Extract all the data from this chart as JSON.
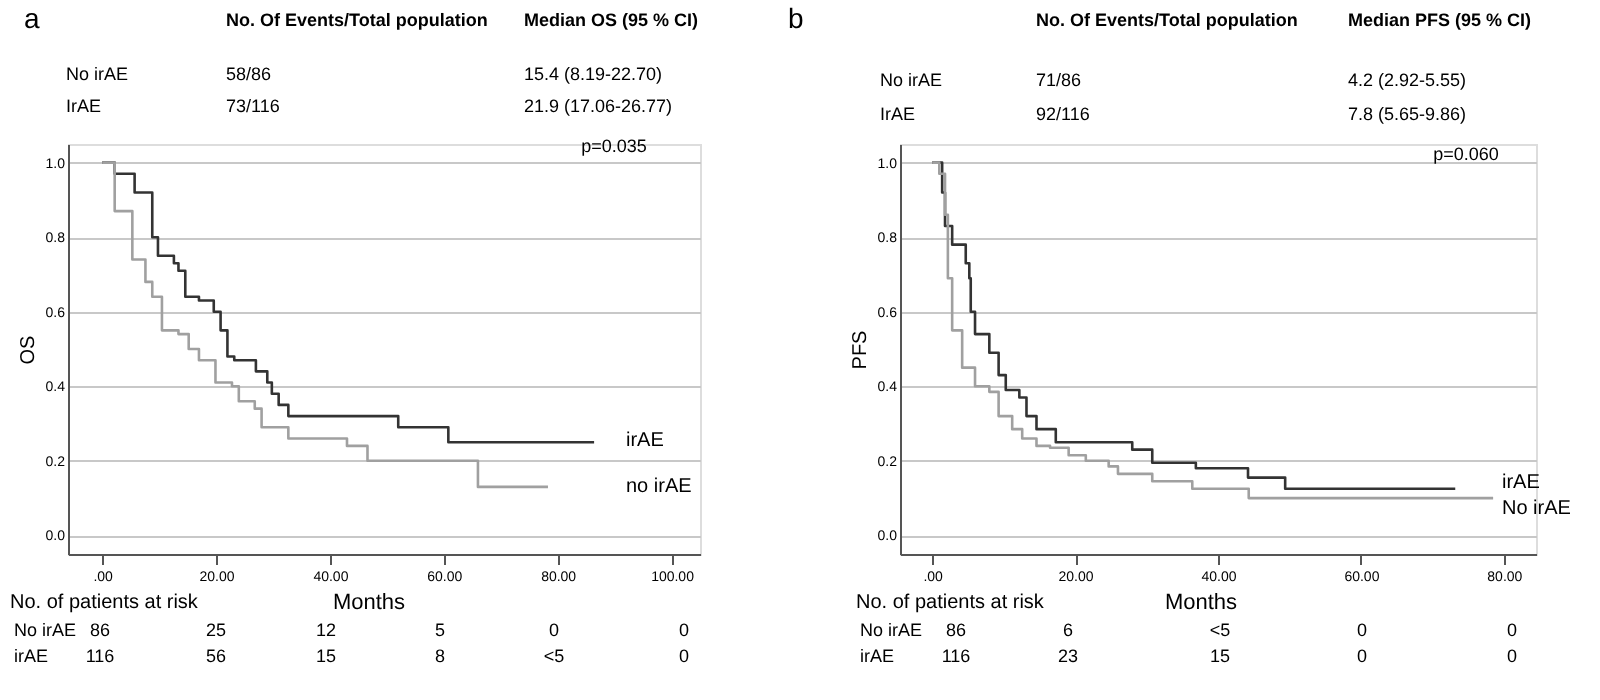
{
  "chart_data": [
    {
      "type": "step",
      "title": "a",
      "xlabel": "Months",
      "ylabel": "OS",
      "xlim": [
        -6,
        105
      ],
      "ylim": [
        -0.05,
        1.05
      ],
      "xticks": [
        {
          "value": 0,
          "label": ".00"
        },
        {
          "value": 20,
          "label": "20.00"
        },
        {
          "value": 40,
          "label": "40.00"
        },
        {
          "value": 60,
          "label": "60.00"
        },
        {
          "value": 80,
          "label": "80.00"
        },
        {
          "value": 100,
          "label": "100.00"
        }
      ],
      "yticks": [
        {
          "value": 0,
          "label": "0.0"
        },
        {
          "value": 0.2,
          "label": "0.2"
        },
        {
          "value": 0.4,
          "label": "0.4"
        },
        {
          "value": 0.6,
          "label": "0.6"
        },
        {
          "value": 0.8,
          "label": "0.8"
        },
        {
          "value": 1,
          "label": "1.0"
        }
      ],
      "grid": "y",
      "series": [
        {
          "name": "irAE",
          "color": "#333333",
          "x": [
            0,
            2.2,
            5.7,
            8.8,
            9.8,
            12.6,
            13.4,
            14.6,
            17,
            19.6,
            20.8,
            22,
            23.2,
            27,
            29,
            29.8,
            31,
            32.7,
            52,
            60.8,
            86.4
          ],
          "values": [
            1,
            0.97,
            0.92,
            0.8,
            0.75,
            0.73,
            0.71,
            0.64,
            0.63,
            0.6,
            0.55,
            0.48,
            0.47,
            0.44,
            0.41,
            0.38,
            0.35,
            0.32,
            0.29,
            0.25,
            0.25
          ]
        },
        {
          "name": "no irAE",
          "color": "#a0a0a0",
          "x": [
            0,
            2.2,
            5.3,
            7.6,
            8.8,
            10.5,
            13.4,
            15.2,
            17,
            19.9,
            22.8,
            24,
            26.8,
            28,
            32.7,
            43,
            46.6,
            66,
            78.3
          ],
          "values": [
            1,
            0.87,
            0.74,
            0.68,
            0.64,
            0.55,
            0.54,
            0.5,
            0.47,
            0.41,
            0.4,
            0.36,
            0.34,
            0.29,
            0.26,
            0.24,
            0.2,
            0.13,
            0.13
          ]
        }
      ],
      "annotations": [
        "No. Of Events/Total population",
        "Median OS (95 % CI)",
        "No irAE",
        "58/86",
        "15.4 (8.19-22.70)",
        "IrAE",
        "73/116",
        "21.9 (17.06-26.77)",
        "p=0.035",
        "No. of patients at risk",
        "No irAE",
        "86",
        "25",
        "12",
        "5",
        "0",
        "0",
        "irAE",
        "116",
        "56",
        "15",
        "8",
        "<5",
        "0"
      ]
    },
    {
      "type": "step",
      "title": "b",
      "xlabel": "Months",
      "ylabel": "PFS",
      "xlim": [
        -4.5,
        84.5
      ],
      "ylim": [
        -0.05,
        1.05
      ],
      "xticks": [
        {
          "value": 0,
          "label": ".00"
        },
        {
          "value": 20,
          "label": "20.00"
        },
        {
          "value": 40,
          "label": "40.00"
        },
        {
          "value": 60,
          "label": "60.00"
        },
        {
          "value": 80,
          "label": "80.00"
        }
      ],
      "yticks": [
        {
          "value": 0,
          "label": "0.0"
        },
        {
          "value": 0.2,
          "label": "0.2"
        },
        {
          "value": 0.4,
          "label": "0.4"
        },
        {
          "value": 0.6,
          "label": "0.6"
        },
        {
          "value": 0.8,
          "label": "0.8"
        },
        {
          "value": 1,
          "label": "1.0"
        }
      ],
      "grid": "y",
      "series": [
        {
          "name": "irAE",
          "color": "#333333",
          "x": [
            0,
            1.4,
            1.8,
            2.8,
            4.7,
            5.2,
            5.4,
            6,
            8,
            9.3,
            10.3,
            12.2,
            13.2,
            14.6,
            17.3,
            28,
            30.8,
            36.9,
            44.2,
            49.4,
            73.2
          ],
          "values": [
            1,
            0.92,
            0.83,
            0.78,
            0.73,
            0.69,
            0.6,
            0.54,
            0.49,
            0.43,
            0.39,
            0.37,
            0.32,
            0.285,
            0.25,
            0.23,
            0.195,
            0.18,
            0.155,
            0.125,
            0.125
          ]
        },
        {
          "name": "No irAE",
          "color": "#a0a0a0",
          "x": [
            0,
            1,
            1.8,
            2.2,
            2.8,
            4.2,
            6,
            8,
            9.3,
            11.2,
            12.6,
            14.6,
            16.5,
            19.1,
            21.5,
            24.7,
            26,
            30.8,
            36.4,
            44.3,
            78.5
          ],
          "values": [
            1,
            0.97,
            0.86,
            0.69,
            0.55,
            0.45,
            0.4,
            0.385,
            0.32,
            0.285,
            0.26,
            0.24,
            0.235,
            0.215,
            0.2,
            0.185,
            0.165,
            0.145,
            0.125,
            0.1,
            0.1
          ]
        }
      ],
      "annotations": [
        "No. Of Events/Total population",
        "Median PFS (95 % CI)",
        "No irAE",
        "71/86",
        "4.2 (2.92-5.55)",
        "IrAE",
        "92/116",
        "7.8 (5.65-9.86)",
        "p=0.060",
        "No. of patients at risk",
        "No irAE",
        "86",
        "6",
        "<5",
        "0",
        "0",
        "irAE",
        "116",
        "23",
        "15",
        "0",
        "0"
      ]
    }
  ]
}
